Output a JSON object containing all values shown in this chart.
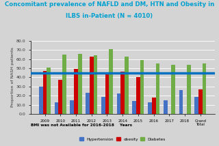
{
  "title_line1": "Concomitant prevalence of NAFLD and DM, HTN and Obesity in",
  "title_line2": "ILBS in-Patient (N = 4010)",
  "categories": [
    "2009",
    "2010",
    "2011",
    "2012",
    "2013",
    "2014",
    "2015",
    "2016",
    "2017",
    "2018",
    "Grand\nTotal"
  ],
  "hypertension": [
    30,
    13,
    15,
    23,
    19,
    22,
    14,
    13,
    15,
    26,
    19
  ],
  "obesity": [
    47,
    37,
    49,
    63,
    45,
    46,
    40,
    18,
    0,
    0,
    27
  ],
  "diabetes": [
    51,
    65,
    66,
    64,
    71,
    63,
    59,
    55,
    54,
    54,
    55
  ],
  "hline_y": 45,
  "ylabel": "Proportion of NASH patients",
  "ylim": [
    0,
    80
  ],
  "yticks": [
    0.0,
    10.0,
    20.0,
    30.0,
    40.0,
    50.0,
    60.0,
    70.0,
    80.0
  ],
  "footnote": "BMI was not Available for 2016-2018    Years",
  "bar_width": 0.25,
  "colors": {
    "hypertension": "#4472c4",
    "obesity": "#cc0000",
    "diabetes": "#70ad47"
  },
  "hline_color": "#0070c0",
  "bg_color": "#d4d4d4",
  "title_color": "#00a0d0",
  "legend": [
    "Hypertension",
    "obesity",
    "Diabetes"
  ]
}
